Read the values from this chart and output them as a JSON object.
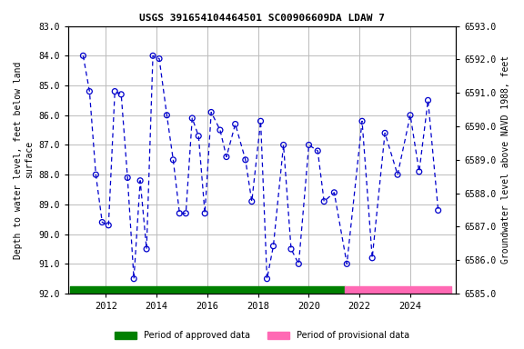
{
  "title": "USGS 391654104464501 SC00906609DA LDAW 7",
  "ylabel_left": "Depth to water level, feet below land\nsurface",
  "ylabel_right": "Groundwater level above NAVD 1988, feet",
  "ylim_left": [
    92.0,
    83.0
  ],
  "ylim_right": [
    6585.0,
    6593.0
  ],
  "yticks_left": [
    83.0,
    84.0,
    85.0,
    86.0,
    87.0,
    88.0,
    89.0,
    90.0,
    91.0,
    92.0
  ],
  "yticks_right": [
    6585.0,
    6586.0,
    6587.0,
    6588.0,
    6589.0,
    6590.0,
    6591.0,
    6592.0,
    6593.0
  ],
  "xlim": [
    2010.5,
    2025.8
  ],
  "xticks": [
    2012,
    2014,
    2016,
    2018,
    2020,
    2022,
    2024
  ],
  "line_color": "#0000CC",
  "marker_color": "#0000CC",
  "background_color": "#ffffff",
  "grid_color": "#bbbbbb",
  "approved_bar_color": "#008000",
  "provisional_bar_color": "#FF69B4",
  "approved_xstart": 2010.6,
  "approved_xend": 2021.4,
  "provisional_xstart": 2021.4,
  "provisional_xend": 2025.6,
  "bar_y": 92.0,
  "bar_thickness": 0.25,
  "data_x": [
    2011.1,
    2011.35,
    2011.6,
    2011.85,
    2012.1,
    2012.35,
    2012.6,
    2012.85,
    2013.1,
    2013.35,
    2013.6,
    2013.85,
    2014.1,
    2014.4,
    2014.65,
    2014.9,
    2015.15,
    2015.4,
    2015.65,
    2015.9,
    2016.15,
    2016.5,
    2016.75,
    2017.1,
    2017.5,
    2017.75,
    2018.1,
    2018.35,
    2018.6,
    2019.0,
    2019.3,
    2019.6,
    2020.0,
    2020.35,
    2020.6,
    2021.0,
    2021.5,
    2022.1,
    2022.5,
    2023.0,
    2023.5,
    2024.0,
    2024.35,
    2024.7,
    2025.1
  ],
  "data_y": [
    84.0,
    85.2,
    88.0,
    89.6,
    89.7,
    85.2,
    85.3,
    88.1,
    91.5,
    88.2,
    90.5,
    84.0,
    84.1,
    86.0,
    87.5,
    89.3,
    89.3,
    86.1,
    86.7,
    89.3,
    85.9,
    86.5,
    87.4,
    86.3,
    87.5,
    88.9,
    86.2,
    91.5,
    90.4,
    87.0,
    90.5,
    91.0,
    87.0,
    87.2,
    88.9,
    88.6,
    91.0,
    86.2,
    90.8,
    86.6,
    88.0,
    86.0,
    87.9,
    85.5,
    89.2
  ],
  "legend_approved": "Period of approved data",
  "legend_provisional": "Period of provisional data"
}
